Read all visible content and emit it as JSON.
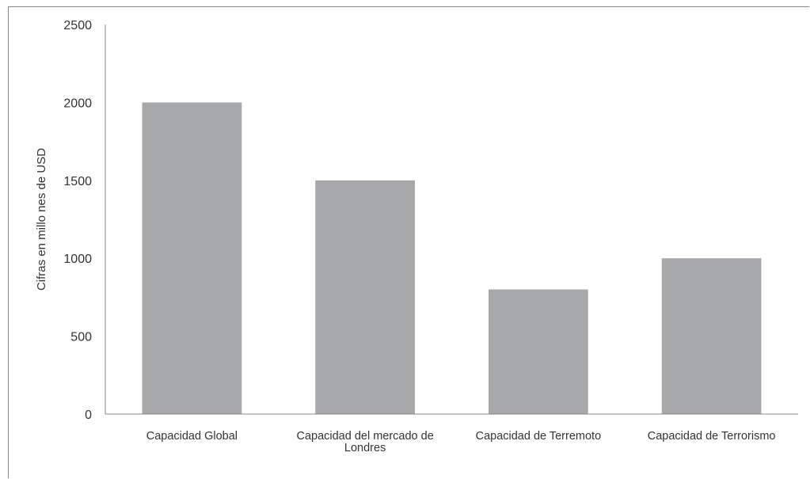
{
  "chart_data": {
    "type": "bar",
    "categories": [
      [
        "Capacidad Global"
      ],
      [
        "Capacidad del mercado de",
        "Londres"
      ],
      [
        "Capacidad de Terremoto"
      ],
      [
        "Capacidad de Terrorismo"
      ]
    ],
    "values": [
      2000,
      1500,
      800,
      1000
    ],
    "title": "",
    "xlabel": "",
    "ylabel": "Cifras en millo nes de USD",
    "ylim": [
      0,
      2500
    ],
    "yticks": [
      0,
      500,
      1000,
      1500,
      2000,
      2500
    ],
    "grid": false,
    "legend": "none",
    "bar_color": "#a7a8aa",
    "axis_color": "#888888",
    "text_color": "#333333"
  }
}
